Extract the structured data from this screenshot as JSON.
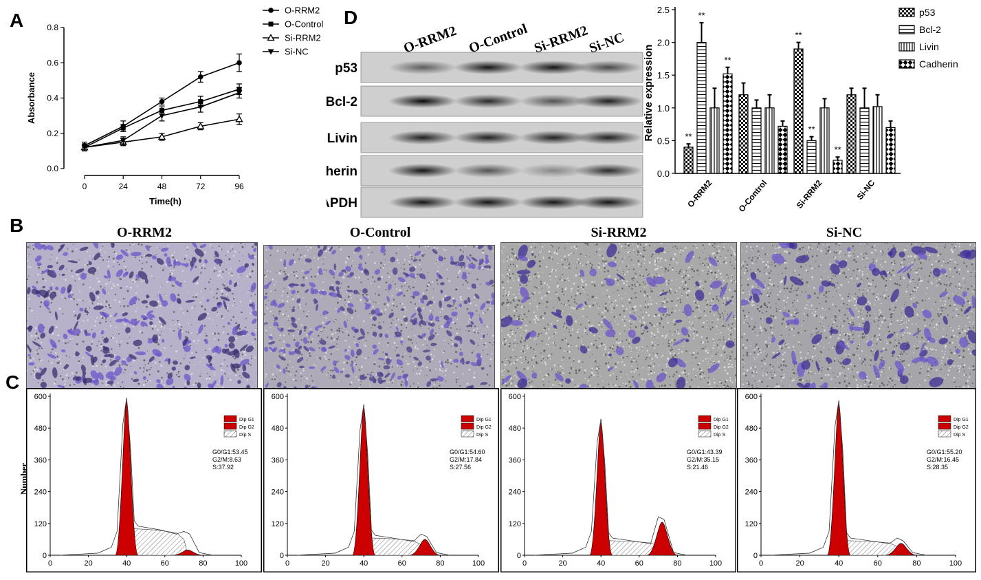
{
  "panels": {
    "a": "A",
    "b": "B",
    "c": "C",
    "d": "D"
  },
  "panelA": {
    "chart_data": {
      "type": "line",
      "xlabel": "Time(h)",
      "ylabel": "Absorbance",
      "x": [
        0,
        24,
        48,
        72,
        96
      ],
      "xticks": [
        "0",
        "24",
        "48",
        "72",
        "96"
      ],
      "yticks": [
        "0.0",
        "0.2",
        "0.4",
        "0.6",
        "0.8"
      ],
      "ylim": [
        0,
        0.8
      ],
      "series": [
        {
          "name": "O-RRM2",
          "marker": "circle",
          "values": [
            0.13,
            0.24,
            0.38,
            0.52,
            0.6
          ],
          "err": [
            0.02,
            0.03,
            0.02,
            0.03,
            0.05
          ]
        },
        {
          "name": "O-Control",
          "marker": "square",
          "values": [
            0.12,
            0.23,
            0.33,
            0.38,
            0.45
          ],
          "err": [
            0.02,
            0.02,
            0.02,
            0.03,
            0.03
          ]
        },
        {
          "name": "Si-RRM2",
          "marker": "triangle-open",
          "values": [
            0.12,
            0.15,
            0.18,
            0.24,
            0.28
          ],
          "err": [
            0.02,
            0.02,
            0.02,
            0.02,
            0.03
          ]
        },
        {
          "name": "Si-NC",
          "marker": "triangle-down",
          "values": [
            0.12,
            0.16,
            0.3,
            0.35,
            0.43
          ],
          "err": [
            0.02,
            0.02,
            0.03,
            0.03,
            0.03
          ]
        }
      ]
    }
  },
  "panelD": {
    "blot_lanes": [
      "O-RRM2",
      "O-Control",
      "Si-RRM2",
      "Si-NC"
    ],
    "blot_rows": [
      {
        "label": "p53",
        "intensity": [
          0.55,
          0.9,
          0.9,
          0.65
        ]
      },
      {
        "label": "Bcl-2",
        "intensity": [
          0.95,
          0.8,
          0.6,
          0.85
        ]
      },
      {
        "label": "Livin",
        "intensity": [
          0.85,
          0.85,
          0.85,
          0.85
        ]
      },
      {
        "label": "Cadherin",
        "intensity": [
          0.9,
          0.6,
          0.35,
          0.8
        ]
      },
      {
        "label": "GAPDH",
        "intensity": [
          0.9,
          0.9,
          0.9,
          0.9
        ]
      }
    ],
    "chart_data": {
      "type": "bar",
      "ylabel": "Relative expression",
      "ylim": [
        0,
        2.5
      ],
      "yticks": [
        "0.0",
        "0.5",
        "1.0",
        "1.5",
        "2.0",
        "2.5"
      ],
      "categories": [
        "O-RRM2",
        "O-Control",
        "Si-RRM2",
        "Si-NC"
      ],
      "series": [
        {
          "name": "p53",
          "pattern": "checker",
          "values": [
            0.4,
            1.2,
            1.9,
            1.2
          ],
          "err": [
            0.05,
            0.18,
            0.1,
            0.1
          ],
          "sig": [
            "**",
            "",
            "**",
            ""
          ]
        },
        {
          "name": "Bcl-2",
          "pattern": "hlines",
          "values": [
            2.0,
            1.0,
            0.5,
            1.0
          ],
          "err": [
            0.3,
            0.12,
            0.06,
            0.3
          ],
          "sig": [
            "**",
            "",
            "**",
            ""
          ]
        },
        {
          "name": "Livin",
          "pattern": "vlines",
          "values": [
            1.0,
            1.0,
            1.0,
            1.02
          ],
          "err": [
            0.3,
            0.2,
            0.14,
            0.18
          ],
          "sig": [
            "",
            "",
            "",
            ""
          ]
        },
        {
          "name": "Cadherin",
          "pattern": "cross",
          "values": [
            1.52,
            0.72,
            0.2,
            0.7
          ],
          "err": [
            0.1,
            0.08,
            0.05,
            0.1
          ],
          "sig": [
            "**",
            "",
            "**",
            ""
          ]
        }
      ]
    }
  },
  "panelB": {
    "titles": [
      "O-RRM2",
      "O-Control",
      "Si-RRM2",
      "Si-NC"
    ]
  },
  "panelC": {
    "ylabel": "Number",
    "xticks": [
      "0",
      "20",
      "40",
      "60",
      "80",
      "100"
    ],
    "yticks": [
      "0",
      "120",
      "240",
      "360",
      "480",
      "600"
    ],
    "legend": [
      "Dip G1",
      "Dip G2",
      "Dip S"
    ],
    "colors": {
      "peak": "#cc0000",
      "line": "#333333"
    },
    "histograms": [
      {
        "g0g1": "G0/G1:53.45",
        "g2m": "G2/M:8.63",
        "s": "S:37.92",
        "g1_height": 580,
        "g2_height": 20,
        "s_level": 100
      },
      {
        "g0g1": "G0/G1:54.60",
        "g2m": "G2/M:17.84",
        "s": "S:27.56",
        "g1_height": 555,
        "g2_height": 60,
        "s_level": 65
      },
      {
        "g0g1": "G0/G1:43.39",
        "g2m": "G2/M:35.15",
        "s": "S:21.46",
        "g1_height": 500,
        "g2_height": 125,
        "s_level": 55
      },
      {
        "g0g1": "G0/G1:55.20",
        "g2m": "G2/M:16.45",
        "s": "S:28.35",
        "g1_height": 570,
        "g2_height": 45,
        "s_level": 55
      }
    ]
  }
}
